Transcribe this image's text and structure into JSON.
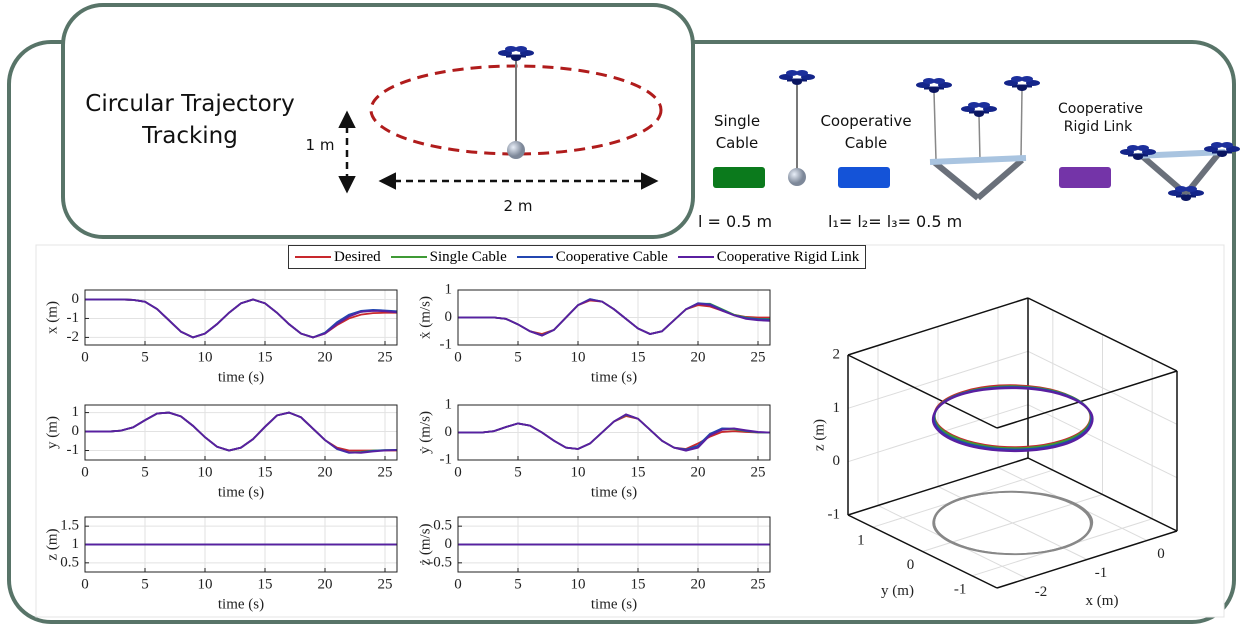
{
  "diagram": {
    "title": "Circular Trajectory Tracking",
    "height_label": "1 m",
    "width_label": "2 m",
    "configs": [
      {
        "label": "Single Cable",
        "color": "#0b7a1c",
        "param": "l = 0.5 m"
      },
      {
        "label": "Cooperative Cable",
        "color": "#1453d8",
        "param": "l₁= l₂= l₃= 0.5 m"
      },
      {
        "label": "Cooperative Rigid Link",
        "color": "#7434a8"
      }
    ]
  },
  "legend": [
    {
      "name": "Desired",
      "color": "#c8282d"
    },
    {
      "name": "Single Cable",
      "color": "#3f9a35"
    },
    {
      "name": "Cooperative Cable",
      "color": "#2346b0"
    },
    {
      "name": "Cooperative Rigid Link",
      "color": "#5a1fa0"
    }
  ],
  "chart_data": [
    {
      "type": "line",
      "ylabel": "x (m)",
      "xlabel": "time (s)",
      "xlim": [
        0,
        26
      ],
      "xticks": [
        0,
        5,
        10,
        15,
        20,
        25
      ],
      "ylim": [
        -2.4,
        0.5
      ],
      "yticks": [
        -2,
        -1,
        0
      ],
      "grid": true,
      "x": [
        0,
        1,
        2,
        3,
        4,
        5,
        6,
        7,
        8,
        9,
        10,
        11,
        12,
        13,
        14,
        15,
        16,
        17,
        18,
        19,
        20,
        21,
        22,
        23,
        24,
        25,
        26
      ],
      "series": [
        {
          "values": [
            0,
            0,
            0,
            0,
            -0.02,
            -0.12,
            -0.5,
            -1.1,
            -1.7,
            -2.0,
            -1.8,
            -1.3,
            -0.7,
            -0.2,
            0,
            -0.2,
            -0.7,
            -1.3,
            -1.8,
            -2.0,
            -1.8,
            -1.35,
            -1.0,
            -0.8,
            -0.72,
            -0.7,
            -0.7
          ]
        },
        {
          "values": [
            0,
            0,
            0,
            0,
            -0.02,
            -0.12,
            -0.5,
            -1.1,
            -1.7,
            -2.0,
            -1.8,
            -1.3,
            -0.7,
            -0.2,
            0,
            -0.2,
            -0.7,
            -1.3,
            -1.8,
            -2.0,
            -1.75,
            -1.25,
            -0.85,
            -0.65,
            -0.58,
            -0.6,
            -0.65
          ]
        },
        {
          "values": [
            0,
            0,
            0,
            0,
            -0.02,
            -0.12,
            -0.5,
            -1.1,
            -1.7,
            -2.0,
            -1.8,
            -1.3,
            -0.7,
            -0.2,
            0,
            -0.2,
            -0.7,
            -1.3,
            -1.8,
            -2.0,
            -1.75,
            -1.2,
            -0.8,
            -0.6,
            -0.55,
            -0.58,
            -0.62
          ]
        },
        {
          "values": [
            0,
            0,
            0,
            0,
            -0.02,
            -0.12,
            -0.5,
            -1.1,
            -1.7,
            -2.0,
            -1.8,
            -1.3,
            -0.7,
            -0.2,
            0,
            -0.2,
            -0.7,
            -1.3,
            -1.8,
            -2.0,
            -1.8,
            -1.3,
            -0.9,
            -0.65,
            -0.6,
            -0.62,
            -0.68
          ]
        }
      ]
    },
    {
      "type": "line",
      "ylabel": "ẋ (m/s)",
      "xlabel": "time (s)",
      "xlim": [
        0,
        26
      ],
      "xticks": [
        0,
        5,
        10,
        15,
        20,
        25
      ],
      "ylim": [
        -1,
        1
      ],
      "yticks": [
        -1,
        0,
        1
      ],
      "grid": true,
      "x": [
        0,
        1,
        2,
        3,
        4,
        5,
        6,
        7,
        8,
        9,
        10,
        11,
        12,
        13,
        14,
        15,
        16,
        17,
        18,
        19,
        20,
        21,
        22,
        23,
        24,
        25,
        26
      ],
      "series": [
        {
          "values": [
            0,
            0,
            0,
            0,
            -0.05,
            -0.25,
            -0.5,
            -0.6,
            -0.45,
            0,
            0.45,
            0.62,
            0.58,
            0.3,
            -0.05,
            -0.4,
            -0.6,
            -0.5,
            -0.1,
            0.3,
            0.45,
            0.4,
            0.25,
            0.1,
            0.02,
            0,
            0
          ]
        },
        {
          "values": [
            0,
            0,
            0,
            0,
            -0.05,
            -0.25,
            -0.5,
            -0.65,
            -0.45,
            0,
            0.45,
            0.66,
            0.58,
            0.3,
            -0.05,
            -0.4,
            -0.6,
            -0.5,
            -0.1,
            0.3,
            0.5,
            0.5,
            0.3,
            0.1,
            0,
            -0.05,
            -0.05
          ]
        },
        {
          "values": [
            0,
            0,
            0,
            0,
            -0.05,
            -0.25,
            -0.5,
            -0.65,
            -0.45,
            0,
            0.45,
            0.67,
            0.58,
            0.3,
            -0.05,
            -0.4,
            -0.6,
            -0.5,
            -0.1,
            0.3,
            0.52,
            0.48,
            0.28,
            0.08,
            -0.02,
            -0.06,
            -0.08
          ]
        },
        {
          "values": [
            0,
            0,
            0,
            0,
            -0.05,
            -0.25,
            -0.5,
            -0.66,
            -0.45,
            0,
            0.45,
            0.65,
            0.58,
            0.3,
            -0.05,
            -0.4,
            -0.6,
            -0.5,
            -0.1,
            0.3,
            0.5,
            0.45,
            0.25,
            0.08,
            -0.05,
            -0.1,
            -0.12
          ]
        }
      ]
    },
    {
      "type": "line",
      "ylabel": "y (m)",
      "xlabel": "time (s)",
      "xlim": [
        0,
        26
      ],
      "xticks": [
        0,
        5,
        10,
        15,
        20,
        25
      ],
      "ylim": [
        -1.5,
        1.4
      ],
      "yticks": [
        -1,
        0,
        1
      ],
      "grid": true,
      "x": [
        0,
        1,
        2,
        3,
        4,
        5,
        6,
        7,
        8,
        9,
        10,
        11,
        12,
        13,
        14,
        15,
        16,
        17,
        18,
        19,
        20,
        21,
        22,
        23,
        24,
        25,
        26
      ],
      "series": [
        {
          "values": [
            0,
            0,
            0,
            0.05,
            0.22,
            0.6,
            0.95,
            1.0,
            0.8,
            0.3,
            -0.3,
            -0.8,
            -1.0,
            -0.85,
            -0.4,
            0.25,
            0.85,
            1.0,
            0.75,
            0.15,
            -0.45,
            -0.85,
            -1.0,
            -1.0,
            -1.0,
            -1.0,
            -1.0
          ]
        },
        {
          "values": [
            0,
            0,
            0,
            0.05,
            0.22,
            0.6,
            0.95,
            1.0,
            0.8,
            0.3,
            -0.3,
            -0.8,
            -1.0,
            -0.85,
            -0.4,
            0.25,
            0.85,
            1.0,
            0.75,
            0.15,
            -0.45,
            -0.9,
            -1.1,
            -1.08,
            -1.0,
            -0.98,
            -0.98
          ]
        },
        {
          "values": [
            0,
            0,
            0,
            0.05,
            0.22,
            0.6,
            0.95,
            1.0,
            0.8,
            0.3,
            -0.3,
            -0.8,
            -1.0,
            -0.85,
            -0.4,
            0.25,
            0.85,
            1.0,
            0.75,
            0.15,
            -0.45,
            -0.92,
            -1.12,
            -1.1,
            -1.02,
            -0.98,
            -0.97
          ]
        },
        {
          "values": [
            0,
            0,
            0,
            0.05,
            0.22,
            0.6,
            0.95,
            1.0,
            0.8,
            0.3,
            -0.3,
            -0.8,
            -1.0,
            -0.85,
            -0.4,
            0.25,
            0.85,
            1.0,
            0.75,
            0.15,
            -0.45,
            -0.9,
            -1.1,
            -1.12,
            -1.05,
            -1.0,
            -0.98
          ]
        }
      ]
    },
    {
      "type": "line",
      "ylabel": "ẏ (m/s)",
      "xlabel": "time (s)",
      "xlim": [
        0,
        26
      ],
      "xticks": [
        0,
        5,
        10,
        15,
        20,
        25
      ],
      "ylim": [
        -1,
        1
      ],
      "yticks": [
        -1,
        0,
        1
      ],
      "grid": true,
      "x": [
        0,
        1,
        2,
        3,
        4,
        5,
        6,
        7,
        8,
        9,
        10,
        11,
        12,
        13,
        14,
        15,
        16,
        17,
        18,
        19,
        20,
        21,
        22,
        23,
        24,
        25,
        26
      ],
      "series": [
        {
          "values": [
            0,
            0,
            0,
            0.05,
            0.2,
            0.33,
            0.25,
            0,
            -0.3,
            -0.55,
            -0.6,
            -0.4,
            0,
            0.4,
            0.6,
            0.5,
            0.1,
            -0.3,
            -0.55,
            -0.6,
            -0.4,
            -0.15,
            0.02,
            0.05,
            0.02,
            0,
            0
          ]
        },
        {
          "values": [
            0,
            0,
            0,
            0.05,
            0.2,
            0.33,
            0.25,
            0,
            -0.3,
            -0.55,
            -0.6,
            -0.4,
            0,
            0.4,
            0.64,
            0.5,
            0.1,
            -0.3,
            -0.55,
            -0.65,
            -0.5,
            -0.05,
            0.12,
            0.12,
            0.05,
            0,
            0
          ]
        },
        {
          "values": [
            0,
            0,
            0,
            0.05,
            0.2,
            0.33,
            0.25,
            0,
            -0.3,
            -0.55,
            -0.6,
            -0.4,
            0,
            0.4,
            0.65,
            0.5,
            0.1,
            -0.3,
            -0.55,
            -0.62,
            -0.48,
            -0.05,
            0.15,
            0.14,
            0.06,
            0.01,
            0
          ]
        },
        {
          "values": [
            0,
            0,
            0,
            0.05,
            0.2,
            0.33,
            0.25,
            0,
            -0.3,
            -0.55,
            -0.6,
            -0.4,
            0,
            0.4,
            0.66,
            0.5,
            0.1,
            -0.3,
            -0.55,
            -0.66,
            -0.55,
            -0.1,
            0.1,
            0.15,
            0.08,
            0.02,
            0
          ]
        }
      ]
    },
    {
      "type": "line",
      "ylabel": "z (m)",
      "xlabel": "time (s)",
      "xlim": [
        0,
        26
      ],
      "xticks": [
        0,
        5,
        10,
        15,
        20,
        25
      ],
      "ylim": [
        0.25,
        1.75
      ],
      "yticks": [
        0.5,
        1,
        1.5
      ],
      "grid": true,
      "x": [
        0,
        26
      ],
      "series": [
        {
          "values": [
            1,
            1
          ]
        },
        {
          "values": [
            1,
            1
          ]
        },
        {
          "values": [
            1,
            1
          ]
        },
        {
          "values": [
            1,
            1
          ]
        }
      ]
    },
    {
      "type": "line",
      "ylabel": "ż (m/s)",
      "xlabel": "time (s)",
      "xlim": [
        0,
        26
      ],
      "xticks": [
        0,
        5,
        10,
        15,
        20,
        25
      ],
      "ylim": [
        -0.75,
        0.75
      ],
      "yticks": [
        -0.5,
        0,
        0.5
      ],
      "grid": true,
      "x": [
        0,
        26
      ],
      "series": [
        {
          "values": [
            0,
            0
          ]
        },
        {
          "values": [
            0,
            0
          ]
        },
        {
          "values": [
            0,
            0
          ]
        },
        {
          "values": [
            0,
            0
          ]
        }
      ]
    },
    {
      "type": "line3d",
      "xlabel": "x (m)",
      "ylabel": "y (m)",
      "zlabel": "z (m)",
      "xlim": [
        -2.5,
        0.5
      ],
      "ylim": [
        -1.5,
        1.5
      ],
      "zlim": [
        -1,
        2
      ],
      "xticks": [
        -2,
        -1,
        0
      ],
      "yticks": [
        -1,
        0,
        1
      ],
      "zticks": [
        -1,
        0,
        1,
        2
      ],
      "grid": true,
      "shadow_color": "#888888",
      "series": [
        {
          "x": [
            0,
            -0.13,
            -0.5,
            -1,
            -1.5,
            -1.87,
            -2,
            -1.87,
            -1.5,
            -1,
            -0.5,
            -0.13,
            0
          ],
          "y": [
            0,
            0.5,
            0.87,
            1,
            0.87,
            0.5,
            0,
            -0.5,
            -0.87,
            -1,
            -0.87,
            -0.5,
            0
          ],
          "z": [
            1,
            1,
            1,
            1,
            1,
            1,
            1,
            1,
            1,
            1,
            1,
            1,
            1
          ]
        },
        {
          "x": [
            0.02,
            -0.12,
            -0.5,
            -1,
            -1.5,
            -1.87,
            -2,
            -1.87,
            -1.5,
            -1,
            -0.5,
            -0.12,
            0.02
          ],
          "y": [
            0,
            0.5,
            0.87,
            1,
            0.87,
            0.5,
            0,
            -0.5,
            -0.87,
            -1,
            -0.87,
            -0.5,
            0
          ],
          "z": [
            0.98,
            0.98,
            0.98,
            0.98,
            0.98,
            0.98,
            0.98,
            0.98,
            0.98,
            0.98,
            0.98,
            0.98,
            0.98
          ]
        },
        {
          "x": [
            0.03,
            -0.11,
            -0.5,
            -1,
            -1.5,
            -1.88,
            -2.02,
            -1.88,
            -1.5,
            -1,
            -0.5,
            -0.11,
            0.03
          ],
          "y": [
            0,
            0.5,
            0.88,
            1.02,
            0.88,
            0.5,
            0,
            -0.5,
            -0.88,
            -1.02,
            -0.88,
            -0.5,
            0
          ],
          "z": [
            0.96,
            0.96,
            0.96,
            0.96,
            0.96,
            0.96,
            0.96,
            0.96,
            0.96,
            0.96,
            0.96,
            0.96,
            0.96
          ]
        },
        {
          "x": [
            0.04,
            -0.1,
            -0.5,
            -1,
            -1.5,
            -1.89,
            -2.03,
            -1.89,
            -1.5,
            -1,
            -0.5,
            -0.1,
            0.04
          ],
          "y": [
            0,
            0.51,
            0.89,
            1.03,
            0.89,
            0.51,
            0,
            -0.51,
            -0.89,
            -1.03,
            -0.89,
            -0.51,
            0
          ],
          "z": [
            0.94,
            0.94,
            0.94,
            0.94,
            0.94,
            0.94,
            0.94,
            0.94,
            0.94,
            0.94,
            0.94,
            0.94,
            0.94
          ]
        }
      ]
    }
  ]
}
